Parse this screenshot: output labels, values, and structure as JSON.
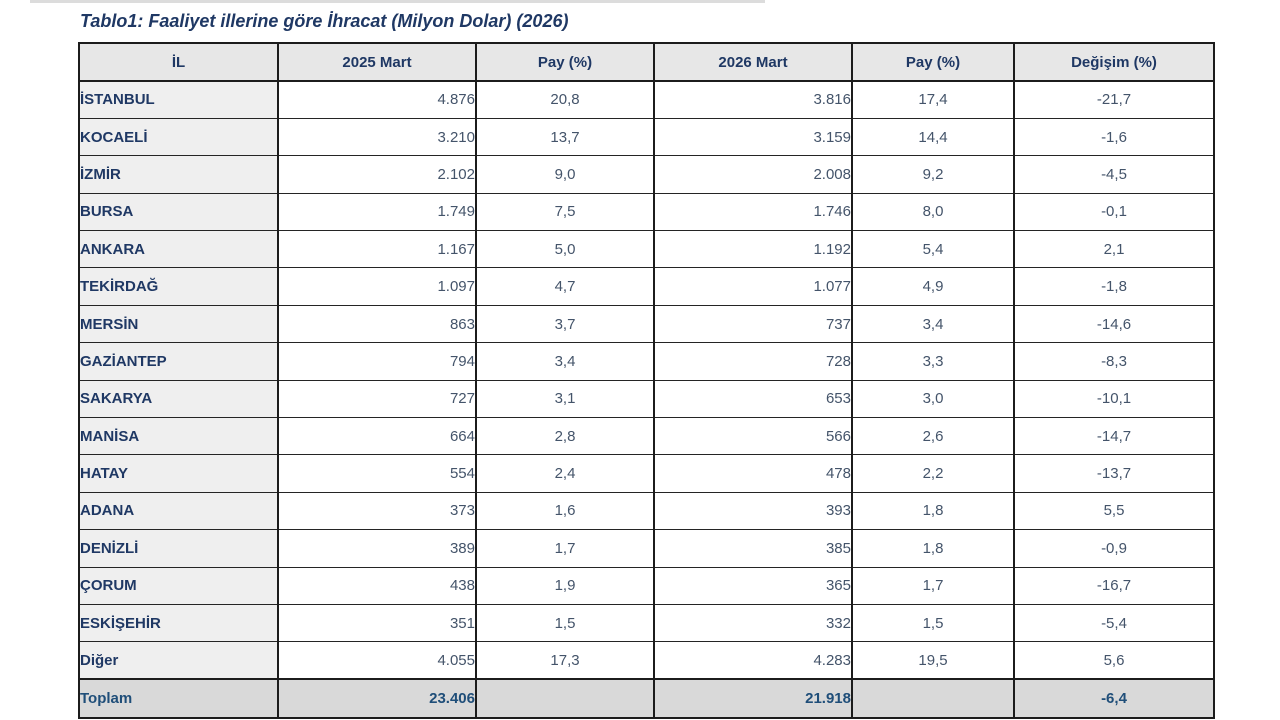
{
  "page": {
    "background": "#ffffff"
  },
  "colors": {
    "title_navy": "#1F3864",
    "header_bg": "#e7e7e7",
    "il_column_bg": "#efefef",
    "number_slate": "#44546A",
    "total_row_bg": "#d9d9d9",
    "total_text_blue": "#1F4E79",
    "grid_border": "#1c1c1c"
  },
  "chart_data": {
    "type": "table",
    "title": "Tablo1: Faaliyet illerine göre İhracat (Milyon Dolar) (2026)",
    "columns": [
      "İL",
      "2025 Mart",
      "Pay  (%)",
      "2026 Mart",
      "Pay  (%)",
      "Değişim (%)"
    ],
    "column_alignments": [
      "left",
      "right",
      "center",
      "right",
      "center",
      "center"
    ],
    "rows": [
      [
        "İSTANBUL",
        "4.876",
        "20,8",
        "3.816",
        "17,4",
        "-21,7"
      ],
      [
        "KOCAELİ",
        "3.210",
        "13,7",
        "3.159",
        "14,4",
        "-1,6"
      ],
      [
        "İZMİR",
        "2.102",
        "9,0",
        "2.008",
        "9,2",
        "-4,5"
      ],
      [
        "BURSA",
        "1.749",
        "7,5",
        "1.746",
        "8,0",
        "-0,1"
      ],
      [
        "ANKARA",
        "1.167",
        "5,0",
        "1.192",
        "5,4",
        "2,1"
      ],
      [
        "TEKİRDAĞ",
        "1.097",
        "4,7",
        "1.077",
        "4,9",
        "-1,8"
      ],
      [
        "MERSİN",
        "863",
        "3,7",
        "737",
        "3,4",
        "-14,6"
      ],
      [
        "GAZİANTEP",
        "794",
        "3,4",
        "728",
        "3,3",
        "-8,3"
      ],
      [
        "SAKARYA",
        "727",
        "3,1",
        "653",
        "3,0",
        "-10,1"
      ],
      [
        "MANİSA",
        "664",
        "2,8",
        "566",
        "2,6",
        "-14,7"
      ],
      [
        "HATAY",
        "554",
        "2,4",
        "478",
        "2,2",
        "-13,7"
      ],
      [
        "ADANA",
        "373",
        "1,6",
        "393",
        "1,8",
        "5,5"
      ],
      [
        "DENİZLİ",
        "389",
        "1,7",
        "385",
        "1,8",
        "-0,9"
      ],
      [
        "ÇORUM",
        "438",
        "1,9",
        "365",
        "1,7",
        "-16,7"
      ],
      [
        "ESKİŞEHİR",
        "351",
        "1,5",
        "332",
        "1,5",
        "-5,4"
      ],
      [
        "Diğer",
        "4.055",
        "17,3",
        "4.283",
        "19,5",
        "5,6"
      ]
    ],
    "total_row": [
      "Toplam",
      "23.406",
      "",
      "21.918",
      "",
      "-6,4"
    ]
  }
}
